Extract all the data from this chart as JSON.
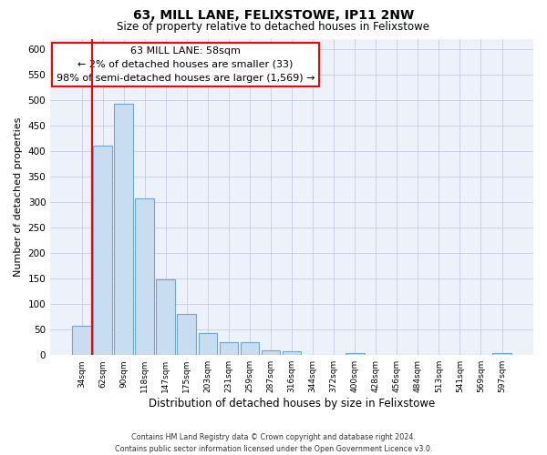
{
  "title": "63, MILL LANE, FELIXSTOWE, IP11 2NW",
  "subtitle": "Size of property relative to detached houses in Felixstowe",
  "xlabel": "Distribution of detached houses by size in Felixstowe",
  "ylabel": "Number of detached properties",
  "bar_labels": [
    "34sqm",
    "62sqm",
    "90sqm",
    "118sqm",
    "147sqm",
    "175sqm",
    "203sqm",
    "231sqm",
    "259sqm",
    "287sqm",
    "316sqm",
    "344sqm",
    "372sqm",
    "400sqm",
    "428sqm",
    "456sqm",
    "484sqm",
    "513sqm",
    "541sqm",
    "569sqm",
    "597sqm"
  ],
  "bar_values": [
    57,
    410,
    493,
    307,
    149,
    81,
    43,
    25,
    25,
    10,
    7,
    0,
    0,
    4,
    0,
    0,
    0,
    0,
    0,
    0,
    4
  ],
  "bar_color": "#c8ddf0",
  "bar_edge_color": "#6fa8d0",
  "ylim": [
    0,
    620
  ],
  "yticks": [
    0,
    50,
    100,
    150,
    200,
    250,
    300,
    350,
    400,
    450,
    500,
    550,
    600
  ],
  "red_line_x": 0.5,
  "annotation_title": "63 MILL LANE: 58sqm",
  "annotation_line1": "← 2% of detached houses are smaller (33)",
  "annotation_line2": "98% of semi-detached houses are larger (1,569) →",
  "footer1": "Contains HM Land Registry data © Crown copyright and database right 2024.",
  "footer2": "Contains public sector information licensed under the Open Government Licence v3.0.",
  "bg_color": "#edf1f9",
  "grid_color": "#c5cde0"
}
